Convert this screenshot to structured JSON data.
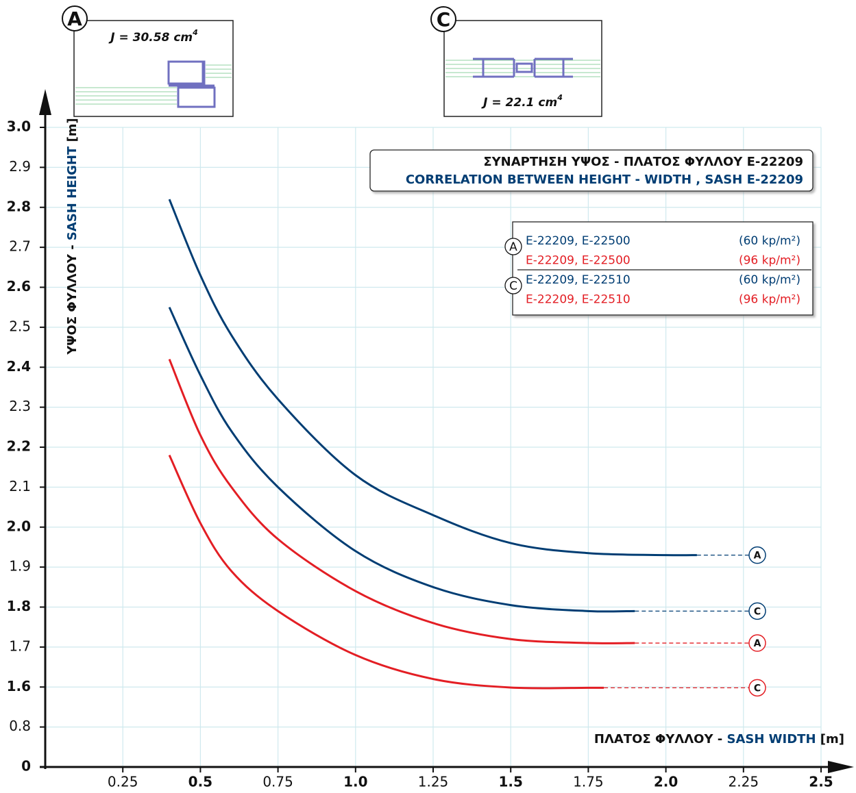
{
  "chart_data": {
    "type": "line",
    "title": "ΣΥΝΑΡΤΗΣΗ ΥΨΟΣ - ΠΛΑΤΟΣ ΦΥΛΛΟΥ E-22209",
    "subtitle": "CORRELATION BETWEEN HEIGHT - WIDTH , SASH E-22209",
    "x_label": {
      "local": "ΠΛΑΤΟΣ ΦΥΛΛΟΥ - ",
      "english": "SASH WIDTH",
      "unit": " [m]"
    },
    "y_label": {
      "local": "ΥΨΟΣ ΦΥΛΛΟΥ - ",
      "english": "SASH HEIGHT",
      "unit": " [m]"
    },
    "xlim": [
      0,
      2.5
    ],
    "ylim": [
      0,
      3.0
    ],
    "xticks": [
      0.25,
      0.5,
      0.75,
      {
        "value": 1,
        "label": "1.0"
      },
      1.25,
      1.5,
      1.75,
      {
        "value": 2,
        "label": "2.0"
      },
      2.25,
      2.5
    ],
    "yticks": [
      0,
      0.8,
      1.6,
      1.7,
      1.8,
      1.9,
      {
        "value": 2,
        "label": "2.0"
      },
      2.1,
      2.2,
      2.3,
      2.4,
      2.5,
      2.6,
      2.7,
      2.8,
      2.9,
      {
        "value": 3,
        "label": "3.0"
      }
    ],
    "grid": true,
    "insets": [
      {
        "letter": "A",
        "label": "J = 30.58 cm",
        "sup": "4"
      },
      {
        "letter": "C",
        "label": "J = 22.1 cm",
        "sup": "4"
      }
    ],
    "series": [
      {
        "name": "E-22209, E-22500",
        "load": "(60 kp/m²)",
        "profile": "A",
        "color": "#003d73",
        "x": [
          0.4,
          0.5,
          0.6,
          0.75,
          1.0,
          1.25,
          1.5,
          1.75,
          2.0,
          2.1
        ],
        "values": [
          2.82,
          2.63,
          2.48,
          2.32,
          2.13,
          2.03,
          1.96,
          1.935,
          1.93,
          1.93
        ]
      },
      {
        "name": "E-22209, E-22500",
        "load": "(96 kp/m²)",
        "profile": "A",
        "color": "#e31e24",
        "x": [
          0.4,
          0.5,
          0.6,
          0.75,
          1.0,
          1.25,
          1.5,
          1.75,
          1.9
        ],
        "values": [
          2.42,
          2.23,
          2.1,
          1.97,
          1.84,
          1.76,
          1.72,
          1.71,
          1.71
        ]
      },
      {
        "name": "E-22209, E-22510",
        "load": "(60 kp/m²)",
        "profile": "C",
        "color": "#003d73",
        "x": [
          0.4,
          0.5,
          0.6,
          0.75,
          1.0,
          1.25,
          1.5,
          1.75,
          1.9
        ],
        "values": [
          2.55,
          2.38,
          2.24,
          2.1,
          1.94,
          1.85,
          1.805,
          1.79,
          1.79
        ]
      },
      {
        "name": "E-22209, E-22510",
        "load": "(96 kp/m²)",
        "profile": "C",
        "color": "#e31e24",
        "x": [
          0.4,
          0.5,
          0.6,
          0.75,
          1.0,
          1.25,
          1.5,
          1.75,
          1.8
        ],
        "values": [
          2.18,
          2.01,
          1.89,
          1.79,
          1.68,
          1.62,
          1.59,
          1.585,
          1.585
        ]
      }
    ]
  }
}
